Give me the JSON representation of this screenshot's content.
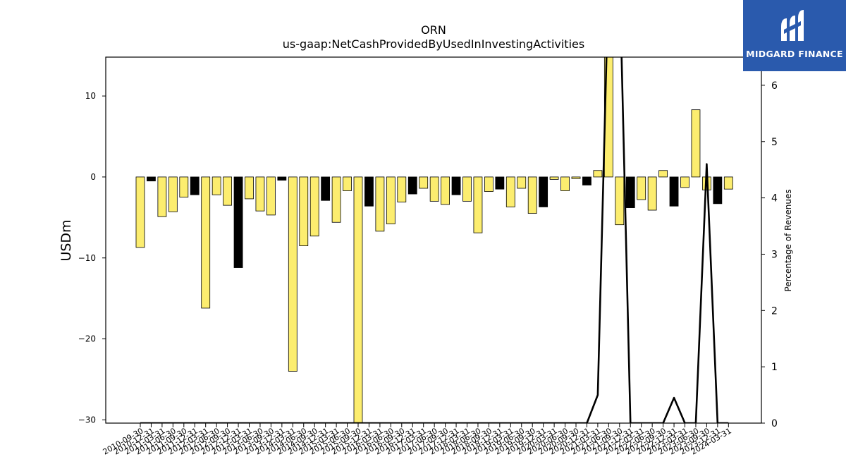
{
  "brand": {
    "name": "MIDGARD FINANCE",
    "bg_color": "#2a5aad"
  },
  "chart_data": {
    "type": "bar",
    "title": "ORN",
    "subtitle": "us-gaap:NetCashProvidedByUsedInInvestingActivities",
    "ylabel": "USDm",
    "y2label": "Percentage of Revenues",
    "ylim": [
      -30.4,
      14.8
    ],
    "y2lim": [
      0,
      6.5
    ],
    "yticks": [
      -30,
      -20,
      -10,
      0,
      10
    ],
    "y2ticks": [
      0,
      1,
      2,
      3,
      4,
      5,
      6
    ],
    "grid": false,
    "legend": "none",
    "colors": {
      "annual_bar": "#000000",
      "quarterly_bar": "#fced6f",
      "line": "#000000"
    },
    "categories": [
      "2010-09-30",
      "2010-12-31",
      "2011-03-31",
      "2011-06-30",
      "2011-09-30",
      "2011-12-31",
      "2012-03-31",
      "2012-06-30",
      "2012-09-30",
      "2012-12-31",
      "2013-03-31",
      "2013-06-30",
      "2013-09-30",
      "2013-12-31",
      "2014-03-31",
      "2014-06-30",
      "2014-09-30",
      "2014-12-31",
      "2015-03-31",
      "2015-06-30",
      "2015-09-30",
      "2015-12-31",
      "2016-03-31",
      "2016-06-30",
      "2016-09-30",
      "2016-12-31",
      "2017-03-31",
      "2017-06-30",
      "2017-09-30",
      "2017-12-31",
      "2018-03-31",
      "2018-06-30",
      "2018-09-30",
      "2018-12-31",
      "2019-03-31",
      "2019-06-30",
      "2019-09-30",
      "2019-12-31",
      "2020-03-31",
      "2020-06-30",
      "2020-09-30",
      "2020-12-31",
      "2021-03-31",
      "2021-06-30",
      "2021-09-30",
      "2021-12-31",
      "2022-03-31",
      "2022-06-30",
      "2022-09-30",
      "2022-12-31",
      "2023-03-31",
      "2023-06-30",
      "2023-09-30",
      "2023-12-31",
      "2024-03-31"
    ],
    "series": [
      {
        "values": [
          -8.7,
          -0.5,
          -4.9,
          -4.3,
          -2.5,
          -2.2,
          -16.2,
          -2.2,
          -3.5,
          -11.2,
          -2.7,
          -4.2,
          -4.7,
          -0.4,
          -24.0,
          -8.5,
          -7.3,
          -2.9,
          -5.6,
          -1.7,
          -30.5,
          -3.6,
          -6.7,
          -5.8,
          -3.1,
          -2.1,
          -1.4,
          -3.0,
          -3.4,
          -2.2,
          -3.0,
          -6.9,
          -1.8,
          -1.5,
          -3.7,
          -1.4,
          -4.5,
          -3.7,
          -0.3,
          -1.7,
          -0.2,
          -1.0,
          0.8,
          16.0,
          -5.9,
          -3.8,
          -2.8,
          -4.1,
          0.8,
          -3.6,
          -1.3,
          8.3,
          -1.6,
          -3.3,
          -1.5
        ],
        "bar_kind": [
          "Q",
          "A",
          "Q",
          "Q",
          "Q",
          "A",
          "Q",
          "Q",
          "Q",
          "A",
          "Q",
          "Q",
          "Q",
          "A",
          "Q",
          "Q",
          "Q",
          "A",
          "Q",
          "Q",
          "Q",
          "A",
          "Q",
          "Q",
          "Q",
          "A",
          "Q",
          "Q",
          "Q",
          "A",
          "Q",
          "Q",
          "Q",
          "A",
          "Q",
          "Q",
          "Q",
          "A",
          "Q",
          "Q",
          "Q",
          "A",
          "Q",
          "Q",
          "Q",
          "A",
          "Q",
          "Q",
          "Q",
          "A",
          "Q",
          "Q",
          "Q",
          "A",
          "Q"
        ]
      },
      {
        "name": "",
        "axis": "right",
        "type": "line",
        "values": [
          0,
          0,
          0,
          0,
          0,
          0,
          0,
          0,
          0,
          0,
          0,
          0,
          0,
          0,
          0,
          0,
          0,
          0,
          0,
          0,
          0,
          0,
          0,
          0,
          0,
          0,
          0,
          0,
          0,
          0,
          0,
          0,
          0,
          0,
          0,
          0,
          0,
          0,
          0,
          0,
          0,
          0,
          0.5,
          8.0,
          8.0,
          0,
          0,
          0,
          0,
          0.45,
          0,
          0,
          4.6,
          0,
          0
        ]
      }
    ]
  }
}
